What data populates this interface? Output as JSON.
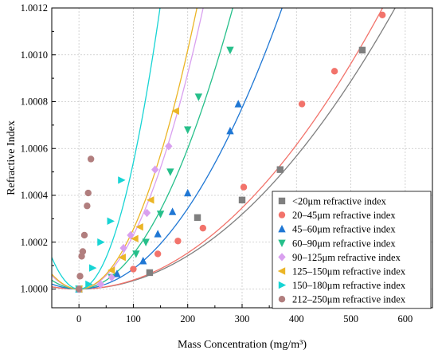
{
  "chart_data": {
    "type": "scatter",
    "xlabel": "Mass Concentration (mg/m³)",
    "ylabel": "Refractive Index",
    "xlim": [
      -50,
      650
    ],
    "ylim": [
      0.99992,
      1.0012
    ],
    "x_ticks": [
      0,
      100,
      200,
      300,
      400,
      500,
      600
    ],
    "y_ticks": [
      1.0,
      1.0002,
      1.0004,
      1.0006,
      1.0008,
      1.001,
      1.0012
    ],
    "y_tick_labels": [
      "1.0000",
      "1.0002",
      "1.0004",
      "1.0006",
      "1.0008",
      "1.0010",
      "1.0012"
    ],
    "grid": true,
    "legend_position": "bottom-right",
    "series": [
      {
        "name": "<20μm refractive index",
        "color": "#7f7f7f",
        "marker": "square",
        "points": [
          [
            0,
            1.0
          ],
          [
            130,
            1.00007
          ],
          [
            218,
            1.000305
          ],
          [
            300,
            1.00038
          ],
          [
            370,
            1.00051
          ],
          [
            521,
            1.00102
          ]
        ],
        "fit_a": 3.55e-09
      },
      {
        "name": "20–45μm refractive index",
        "color": "#f2736b",
        "marker": "circle",
        "points": [
          [
            0,
            1.0
          ],
          [
            100,
            1.000085
          ],
          [
            145,
            1.00015
          ],
          [
            182,
            1.000205
          ],
          [
            228,
            1.00026
          ],
          [
            303,
            1.000435
          ],
          [
            410,
            1.00079
          ],
          [
            470,
            1.00093
          ],
          [
            558,
            1.00117
          ]
        ],
        "fit_a": 3.85e-09
      },
      {
        "name": "45–60μm refractive index",
        "color": "#1f77d4",
        "marker": "triangle-up",
        "points": [
          [
            0,
            1.0
          ],
          [
            70,
            1.000065
          ],
          [
            118,
            1.00012
          ],
          [
            145,
            1.000235
          ],
          [
            172,
            1.00033
          ],
          [
            200,
            1.00041
          ],
          [
            278,
            1.000675
          ],
          [
            293,
            1.00079
          ]
        ],
        "fit_a": 8.6e-09
      },
      {
        "name": "60–90μm refractive index",
        "color": "#26bf8a",
        "marker": "triangle-down",
        "points": [
          [
            0,
            1.0
          ],
          [
            60,
            1.00005
          ],
          [
            105,
            1.00015
          ],
          [
            123,
            1.0002
          ],
          [
            150,
            1.00032
          ],
          [
            168,
            1.0005
          ],
          [
            200,
            1.00068
          ],
          [
            220,
            1.00082
          ],
          [
            278,
            1.00102
          ]
        ],
        "fit_a": 1.5e-08
      },
      {
        "name": "90–125μm refractive index",
        "color": "#d9a0ef",
        "marker": "diamond",
        "points": [
          [
            0,
            1.0
          ],
          [
            40,
            1.00002
          ],
          [
            60,
            1.00005
          ],
          [
            82,
            1.000175
          ],
          [
            95,
            1.00023
          ],
          [
            125,
            1.000325
          ],
          [
            140,
            1.00051
          ],
          [
            165,
            1.00061
          ]
        ],
        "fit_a": 2.3e-08
      },
      {
        "name": "125–150μm refractive index",
        "color": "#ebb526",
        "marker": "triangle-left",
        "points": [
          [
            0,
            1.0
          ],
          [
            60,
            1.00008
          ],
          [
            80,
            1.000135
          ],
          [
            103,
            1.000215
          ],
          [
            112,
            1.000265
          ],
          [
            132,
            1.00038
          ],
          [
            178,
            1.00076
          ]
        ],
        "fit_a": 2.55e-08
      },
      {
        "name": "150–180μm refractive index",
        "color": "#17d4d4",
        "marker": "triangle-right",
        "points": [
          [
            0,
            1.0
          ],
          [
            18,
            1.00002
          ],
          [
            25,
            1.00009
          ],
          [
            40,
            1.0002
          ],
          [
            58,
            1.00029
          ],
          [
            78,
            1.000465
          ]
        ],
        "fit_a": 5.4e-08
      },
      {
        "name": "212–250μm refractive index",
        "color": "#b17e7e",
        "marker": "circle",
        "points": [
          [
            0,
            1.0
          ],
          [
            2,
            1.000055
          ],
          [
            5,
            1.00014
          ],
          [
            7,
            1.00016
          ],
          [
            10,
            1.00023
          ],
          [
            15,
            1.000355
          ],
          [
            17,
            1.00041
          ],
          [
            22,
            1.000555
          ]
        ],
        "fit_a": 8e-07
      }
    ]
  }
}
